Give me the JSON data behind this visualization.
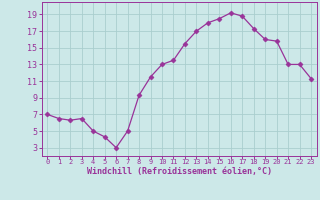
{
  "x": [
    0,
    1,
    2,
    3,
    4,
    5,
    6,
    7,
    8,
    9,
    10,
    11,
    12,
    13,
    14,
    15,
    16,
    17,
    18,
    19,
    20,
    21,
    22,
    23
  ],
  "y": [
    7.0,
    6.5,
    6.3,
    6.5,
    5.0,
    4.3,
    3.0,
    5.0,
    9.3,
    11.5,
    13.0,
    13.5,
    15.5,
    17.0,
    18.0,
    18.5,
    19.2,
    18.8,
    17.3,
    16.0,
    15.8,
    13.0,
    13.0,
    11.3
  ],
  "line_color": "#993399",
  "marker": "D",
  "marker_size": 2.5,
  "bg_color": "#cce8e8",
  "grid_color": "#aacece",
  "xlabel": "Windchill (Refroidissement éolien,°C)",
  "xlabel_color": "#993399",
  "tick_color": "#993399",
  "yticks": [
    3,
    5,
    7,
    9,
    11,
    13,
    15,
    17,
    19
  ],
  "xticks": [
    0,
    1,
    2,
    3,
    4,
    5,
    6,
    7,
    8,
    9,
    10,
    11,
    12,
    13,
    14,
    15,
    16,
    17,
    18,
    19,
    20,
    21,
    22,
    23
  ],
  "ylim": [
    2.0,
    20.5
  ],
  "xlim": [
    -0.5,
    23.5
  ]
}
